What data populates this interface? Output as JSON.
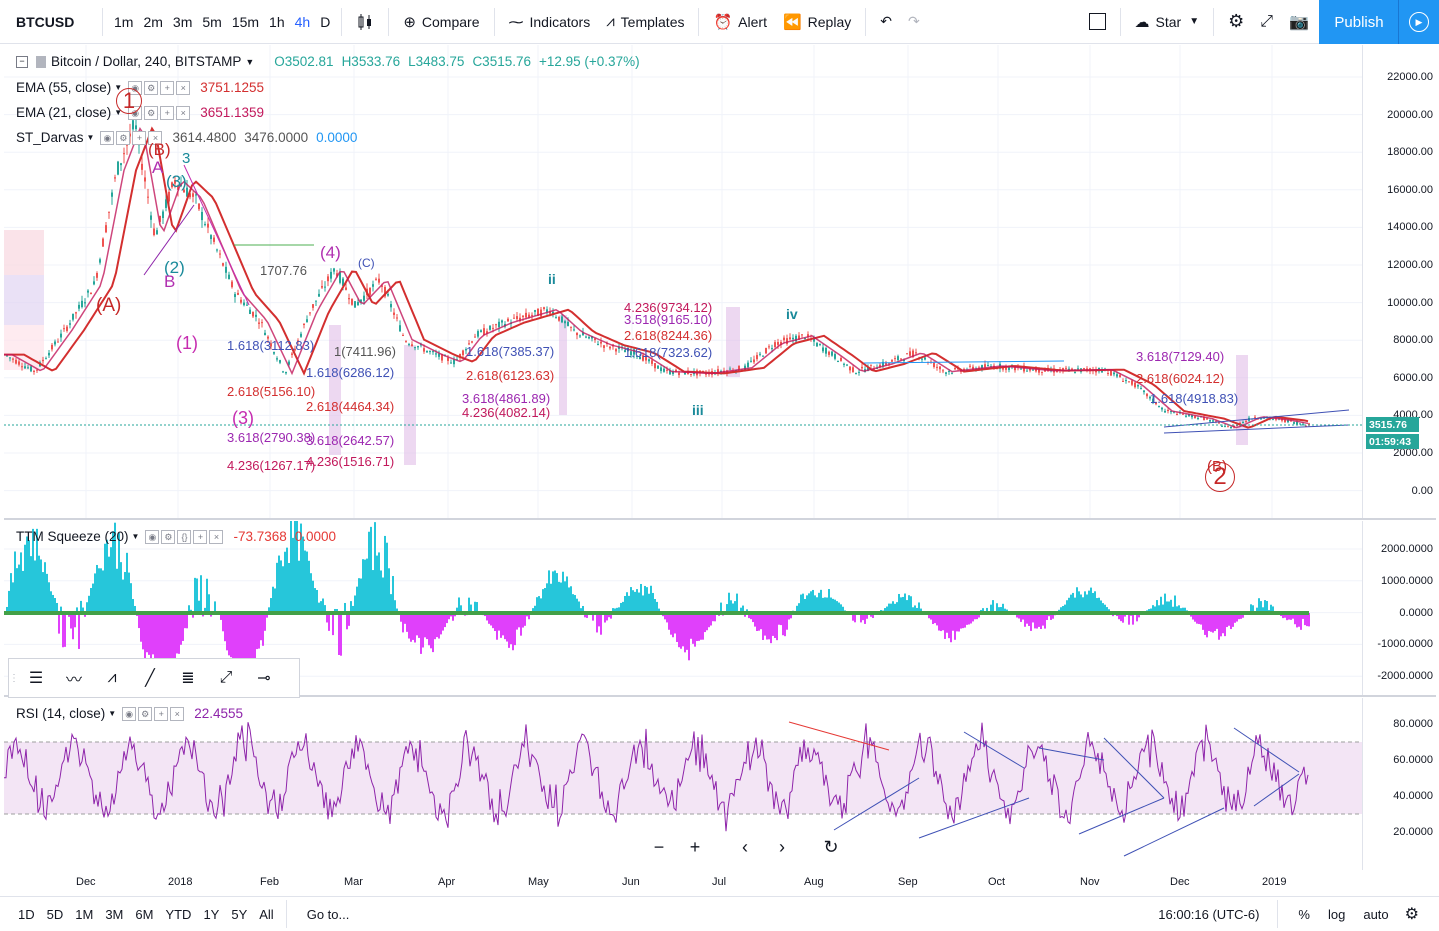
{
  "toolbar": {
    "symbol": "BTCUSD",
    "timeframes": [
      "1m",
      "2m",
      "3m",
      "5m",
      "15m",
      "1h",
      "4h",
      "D"
    ],
    "active_timeframe": "4h",
    "compare": "Compare",
    "indicators": "Indicators",
    "templates": "Templates",
    "alert": "Alert",
    "replay": "Replay",
    "star": "Star",
    "publish": "Publish"
  },
  "main_legend": {
    "title": "Bitcoin / Dollar, 240, BITSTAMP",
    "open": "O3502.81",
    "high": "H3533.76",
    "low": "L3483.75",
    "close": "C3515.76",
    "change": "+12.95 (+0.37%)"
  },
  "indicators": {
    "ema55": {
      "name": "EMA (55, close)",
      "value": "3751.1255"
    },
    "ema21": {
      "name": "EMA (21, close)",
      "value": "3651.1359"
    },
    "darvas": {
      "name": "ST_Darvas",
      "v1": "3614.4800",
      "v2": "3476.0000",
      "v3": "0.0000"
    },
    "ttm": {
      "name": "TTM Squeeze (20)",
      "v1": "-73.7368",
      "v2": "0.0000"
    },
    "rsi": {
      "name": "RSI (14, close)",
      "value": "22.4555"
    }
  },
  "price_axis": [
    "22000.00",
    "20000.00",
    "18000.00",
    "16000.00",
    "14000.00",
    "12000.00",
    "10000.00",
    "8000.00",
    "6000.00",
    "4000.00",
    "2000.00",
    "0.00"
  ],
  "price_tags": {
    "last": "3515.76",
    "countdown": "01:59:43"
  },
  "ttm_axis": [
    "2000.0000",
    "1000.0000",
    "0.0000",
    "-1000.0000",
    "-2000.0000"
  ],
  "rsi_axis": [
    "80.0000",
    "60.0000",
    "40.0000",
    "20.0000"
  ],
  "time_axis": [
    "Dec",
    "2018",
    "Feb",
    "Mar",
    "Apr",
    "May",
    "Jun",
    "Jul",
    "Aug",
    "Sep",
    "Oct",
    "Nov",
    "Dec",
    "2019"
  ],
  "bottombar": {
    "ranges": [
      "1D",
      "5D",
      "1M",
      "3M",
      "6M",
      "YTD",
      "1Y",
      "5Y",
      "All"
    ],
    "goto": "Go to...",
    "clock": "16:00:16 (UTC-6)",
    "percent": "%",
    "log": "log",
    "auto": "auto"
  },
  "wave_labels": {
    "w1": "1",
    "wB1": "(B)",
    "wA": "A",
    "w3c": "3",
    "w3": "(3)",
    "wA2": "(A)",
    "w2": "(2)",
    "wB": "B",
    "wp1": "(1)",
    "wp3": "(3)",
    "w4": "(4)",
    "wC": "(C)",
    "wii": "ii",
    "wiii": "iii",
    "wiv": "iv",
    "w2big": "2",
    "wB2": "(B)"
  },
  "fib_labels": [
    "1.618(3112.83)",
    "2.618(5156.10)",
    "3.618(2790.38)",
    "4.236(1267.17)",
    "1.618(6286.12)",
    "2.618(4464.34)",
    "3.618(2642.57)",
    "4.236(1516.71)",
    "1(7411.96)",
    "1.618(7385.37)",
    "2.618(6123.63)",
    "3.618(4861.89)",
    "4.236(4082.14)",
    "4.236(9734.12)",
    "3.518(9165.10)",
    "2.618(8244.36)",
    "1.618(7323.62)",
    "3.618(7129.40)",
    "2.618(6024.12)",
    "1.618(4918.83)",
    "1707.76"
  ],
  "colors": {
    "ema55": "#d32f2f",
    "ema21": "#c2185b",
    "darvas_v": "#2196f3",
    "up": "#26a69a",
    "down": "#ef5350",
    "rsi": "#8e24aa",
    "rsi_band": "#f3e5f5",
    "ttm_up": "#26c6da",
    "ttm_down": "#e040fb",
    "accent": "#2196f3"
  }
}
